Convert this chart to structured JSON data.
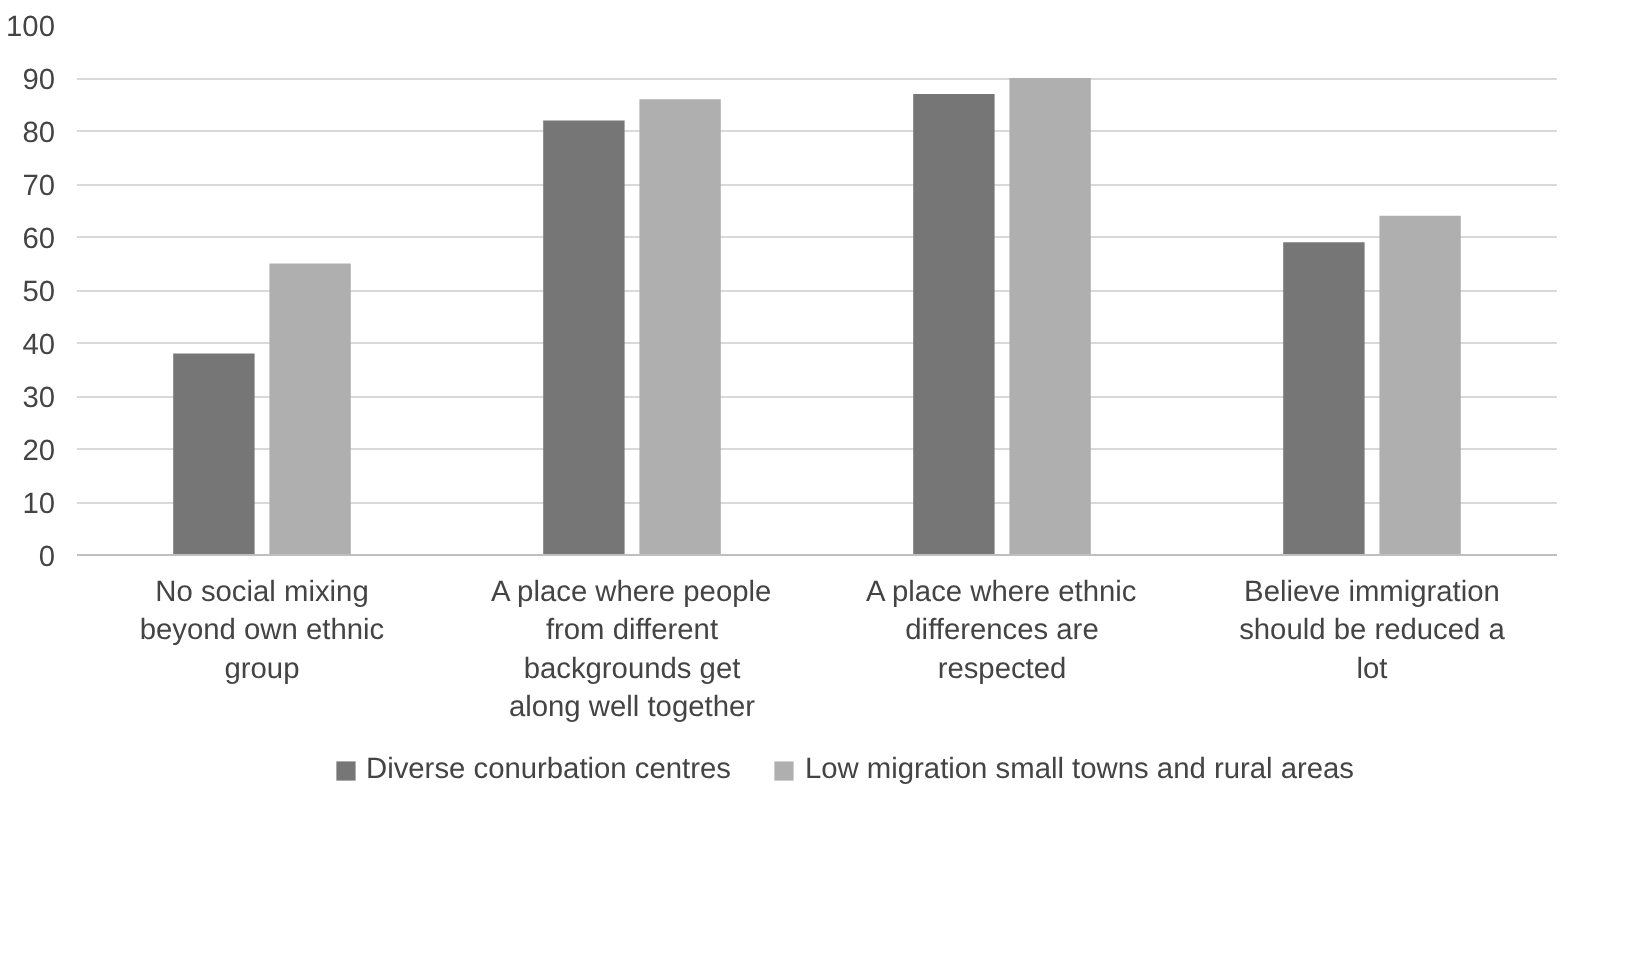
{
  "chart_data": {
    "type": "bar",
    "categories": [
      "No social mixing beyond own ethnic group",
      "A place where people from different backgrounds get along well together",
      "A place where ethnic differences are respected",
      "Believe immigration should be reduced a lot"
    ],
    "series": [
      {
        "name": "Diverse conurbation centres",
        "color": "#767676",
        "values": [
          38,
          82,
          87,
          59
        ]
      },
      {
        "name": "Low migration small towns and rural areas",
        "color": "#afafaf",
        "values": [
          55,
          86,
          90,
          64
        ]
      }
    ],
    "ylim": [
      0,
      100
    ],
    "yticks": [
      0,
      10,
      20,
      30,
      40,
      50,
      60,
      70,
      80,
      90,
      100
    ],
    "grid": "y",
    "legend": "bottom"
  }
}
